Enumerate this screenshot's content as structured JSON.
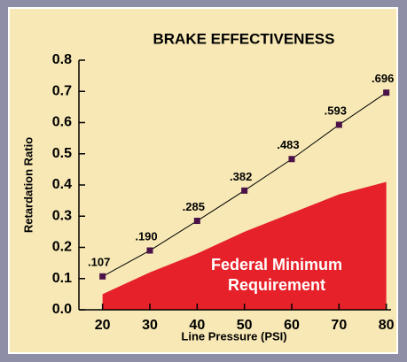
{
  "chart_data": {
    "type": "line",
    "title": "BRAKE EFFECTIVENESS",
    "xlabel": "Line Pressure (PSI)",
    "ylabel": "Retardation Ratio",
    "x": [
      20,
      30,
      40,
      50,
      60,
      70,
      80
    ],
    "series": [
      {
        "name": "Federal Minimum Requirement",
        "type": "area",
        "color": "#e62129",
        "values": [
          0.05,
          0.12,
          0.18,
          0.25,
          0.31,
          0.37,
          0.41
        ]
      },
      {
        "type": "line",
        "color": "#000000",
        "marker_color": "#4b1248",
        "values": [
          0.107,
          0.19,
          0.285,
          0.382,
          0.483,
          0.593,
          0.696
        ],
        "value_labels": [
          ".107",
          ".190",
          ".285",
          ".382",
          ".483",
          ".593",
          ".696"
        ]
      }
    ],
    "xlim": [
      15,
      81
    ],
    "ylim": [
      0,
      0.8
    ],
    "xticks": [
      20,
      30,
      40,
      50,
      60,
      70,
      80
    ],
    "yticks": [
      {
        "value": 0,
        "label": "0.0"
      },
      {
        "value": 0.1,
        "label": "0.1"
      },
      {
        "value": 0.2,
        "label": "0.2"
      },
      {
        "value": 0.3,
        "label": "0.3"
      },
      {
        "value": 0.4,
        "label": "0.4"
      },
      {
        "value": 0.5,
        "label": "0.5"
      },
      {
        "value": 0.6,
        "label": "0.6"
      },
      {
        "value": 0.7,
        "label": "0.7"
      },
      {
        "value": 0.8,
        "label": "0.8"
      }
    ],
    "grid": false
  }
}
